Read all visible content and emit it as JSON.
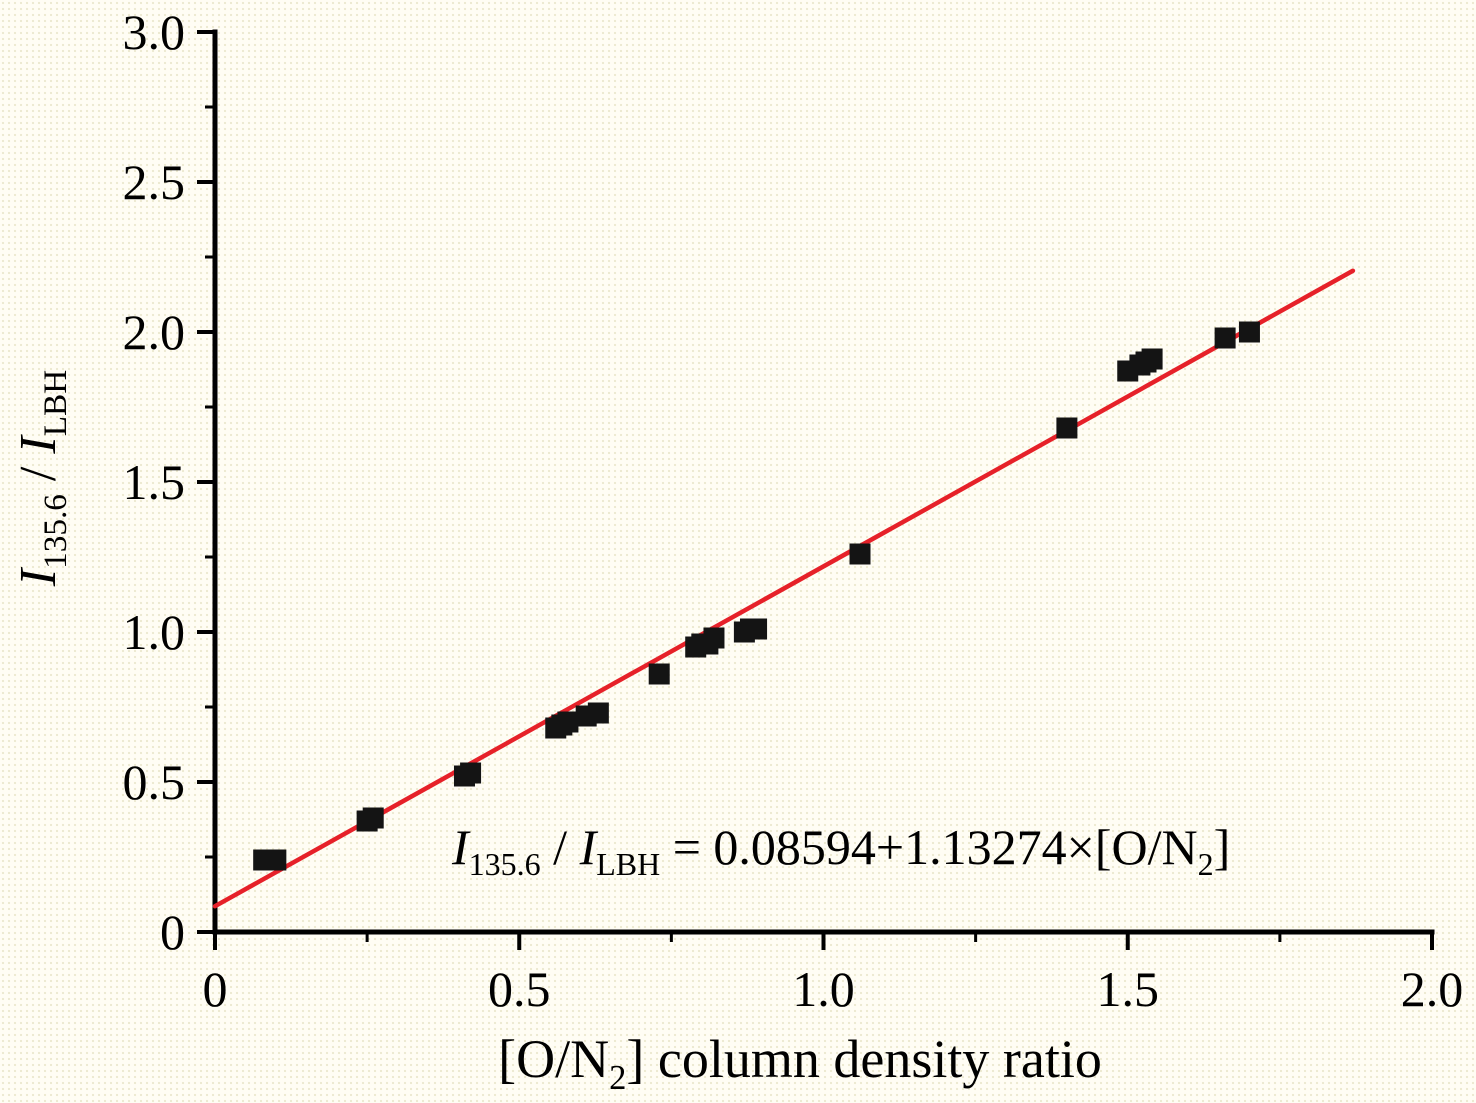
{
  "labels": {
    "y": {
      "I1": "I",
      "sub1": "135.6",
      "sep": " / ",
      "I2": "I",
      "sub2": "LBH"
    },
    "x": {
      "pre": "[O/N",
      "sub": "2",
      "post": "] column density ratio"
    },
    "annotation": {
      "I1": "I",
      "sub1": "135.6",
      "sep": " / ",
      "I2": "I",
      "sub2": "LBH",
      "eq": " = 0.08594+1.13274",
      "times": "×",
      "pre": "[O/N",
      "sub": "2",
      "post": "]"
    }
  },
  "chart_data": {
    "type": "scatter",
    "title": "",
    "xlabel": "[O/N2] column density ratio",
    "ylabel": "I135.6 / ILBH",
    "xlim": [
      0,
      2.0
    ],
    "ylim": [
      0,
      3.0
    ],
    "xticks": [
      0,
      0.5,
      1.0,
      1.5,
      2.0
    ],
    "xtick_labels": [
      "0",
      "0.5",
      "1.0",
      "1.5",
      "2.0"
    ],
    "x_minor_ticks": [
      0.25,
      0.75,
      1.25,
      1.75
    ],
    "yticks": [
      0,
      0.5,
      1.0,
      1.5,
      2.0,
      2.5,
      3.0
    ],
    "ytick_labels": [
      "0",
      "0.5",
      "1.0",
      "1.5",
      "2.0",
      "2.5",
      "3.0"
    ],
    "y_minor_ticks": [
      0.25,
      0.75,
      1.25,
      1.75,
      2.25,
      2.75
    ],
    "grid": false,
    "legend": null,
    "marker": "square",
    "marker_color": "#141414",
    "marker_size": 21,
    "axis_color": "#000000",
    "fit_line": {
      "equation": "I135.6 / ILBH = 0.08594+1.13274×[O/N2]",
      "intercept": 0.08594,
      "slope": 1.13274,
      "x_start": 0.0,
      "x_end": 1.87,
      "color": "#e62129",
      "width": 4.5
    },
    "points": [
      [
        0.08,
        0.24
      ],
      [
        0.1,
        0.24
      ],
      [
        0.25,
        0.37
      ],
      [
        0.26,
        0.38
      ],
      [
        0.41,
        0.52
      ],
      [
        0.42,
        0.53
      ],
      [
        0.56,
        0.68
      ],
      [
        0.57,
        0.69
      ],
      [
        0.58,
        0.7
      ],
      [
        0.61,
        0.72
      ],
      [
        0.63,
        0.73
      ],
      [
        0.73,
        0.86
      ],
      [
        0.79,
        0.95
      ],
      [
        0.8,
        0.96
      ],
      [
        0.81,
        0.96
      ],
      [
        0.82,
        0.98
      ],
      [
        0.87,
        1.0
      ],
      [
        0.88,
        1.01
      ],
      [
        0.89,
        1.01
      ],
      [
        1.06,
        1.26
      ],
      [
        1.4,
        1.68
      ],
      [
        1.5,
        1.87
      ],
      [
        1.52,
        1.89
      ],
      [
        1.53,
        1.9
      ],
      [
        1.54,
        1.91
      ],
      [
        1.66,
        1.98
      ],
      [
        1.7,
        2.0
      ]
    ]
  }
}
